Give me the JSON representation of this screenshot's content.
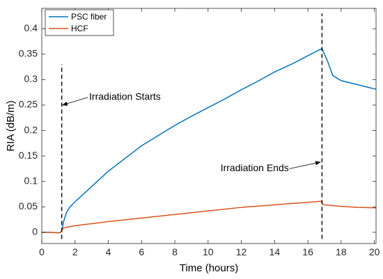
{
  "chart_data": {
    "type": "line",
    "xlabel": "Time (hours)",
    "ylabel": "RIA (dB/m)",
    "xlim": [
      0,
      20.1
    ],
    "ylim": [
      -0.022,
      0.44
    ],
    "xticks": [
      0,
      2,
      4,
      6,
      8,
      10,
      12,
      14,
      16,
      18,
      20
    ],
    "yticks": [
      0,
      0.05,
      0.1,
      0.15,
      0.2,
      0.25,
      0.3,
      0.35,
      0.4
    ],
    "xtick_labels": [
      "0",
      "2",
      "4",
      "6",
      "8",
      "10",
      "12",
      "14",
      "16",
      "18",
      "20"
    ],
    "ytick_labels": [
      "0",
      "0.05",
      "0.1",
      "0.15",
      "0.2",
      "0.25",
      "0.3",
      "0.35",
      "0.4"
    ],
    "grid": false,
    "legend_position": "top-left",
    "series": [
      {
        "name": "PSC fiber",
        "color": "#0072BD",
        "x": [
          0,
          0.5,
          1.0,
          1.15,
          1.2,
          1.25,
          1.3,
          1.4,
          1.5,
          1.7,
          2.0,
          2.5,
          3.0,
          3.5,
          4.0,
          5.0,
          6.0,
          7.0,
          8.0,
          9.0,
          10.0,
          11.0,
          12.0,
          13.0,
          14.0,
          15.0,
          16.0,
          16.6,
          16.85,
          17.0,
          17.2,
          17.5,
          18.0,
          19.0,
          20.1
        ],
        "y": [
          0,
          0,
          -0.001,
          0.0,
          0.005,
          0.01,
          0.02,
          0.03,
          0.04,
          0.05,
          0.06,
          0.075,
          0.09,
          0.105,
          0.12,
          0.145,
          0.17,
          0.19,
          0.21,
          0.228,
          0.245,
          0.262,
          0.28,
          0.297,
          0.315,
          0.33,
          0.347,
          0.357,
          0.361,
          0.35,
          0.335,
          0.308,
          0.298,
          0.29,
          0.281
        ]
      },
      {
        "name": "HCF",
        "color": "#D95319",
        "x": [
          0,
          0.5,
          1.0,
          1.15,
          1.2,
          1.3,
          1.5,
          2.0,
          3.0,
          4.0,
          6.0,
          8.0,
          10.0,
          12.0,
          14.0,
          16.0,
          16.8,
          16.9,
          17.0,
          18.0,
          19.0,
          20.1
        ],
        "y": [
          0,
          0,
          -0.001,
          0.0,
          0.004,
          0.008,
          0.01,
          0.013,
          0.017,
          0.021,
          0.028,
          0.035,
          0.042,
          0.049,
          0.054,
          0.059,
          0.061,
          0.055,
          0.054,
          0.051,
          0.049,
          0.048
        ]
      }
    ],
    "markers": [
      {
        "x": 1.2,
        "y_from": -0.013,
        "y_to": 0.33
      },
      {
        "x": 16.85,
        "y_from": -0.013,
        "y_to": 0.43
      }
    ],
    "annotations": [
      {
        "text": "Irradiation Starts",
        "text_x": 2.85,
        "text_y": 0.265,
        "arrow_x": 1.25,
        "arrow_y": 0.25
      },
      {
        "text": "Irradiation Ends",
        "text_x": 10.75,
        "text_y": 0.125,
        "arrow_x": 16.75,
        "arrow_y": 0.138
      }
    ]
  }
}
